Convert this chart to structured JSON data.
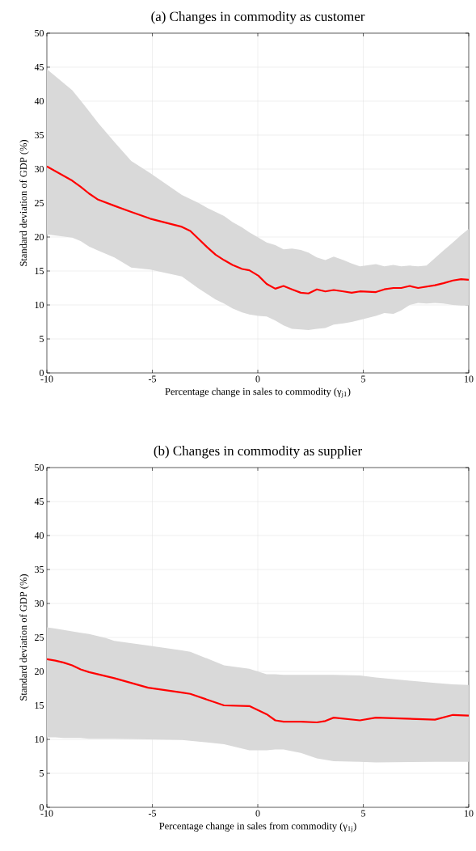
{
  "chart_data": [
    {
      "type": "line",
      "title": "(a) Changes in commodity as customer",
      "xlabel": "Percentage change in sales to commodity (γ$_{j1}$)",
      "ylabel": "Standard deviation of GDP (%)",
      "xlim": [
        -10,
        10
      ],
      "ylim": [
        0,
        50
      ],
      "xticks": [
        -10,
        -5,
        0,
        5,
        10
      ],
      "yticks": [
        0,
        5,
        10,
        15,
        20,
        25,
        30,
        35,
        40,
        45,
        50
      ],
      "grid": true,
      "series": [
        {
          "color": "#ff0000",
          "x": [
            -10,
            -8.8,
            -8.4,
            -8.0,
            -7.57,
            -6.8,
            -6.0,
            -5.1,
            -3.6,
            -3.2,
            -2.8,
            -2.4,
            -2.0,
            -1.6,
            -1.2,
            -0.74,
            -0.4,
            0.03,
            0.42,
            0.83,
            1.22,
            1.62,
            2.04,
            2.4,
            2.8,
            3.2,
            3.6,
            4.06,
            4.45,
            4.84,
            5.6,
            6.0,
            6.43,
            6.8,
            7.2,
            7.6,
            8.0,
            8.4,
            8.8,
            9.25,
            9.64,
            10
          ],
          "values": [
            30.4,
            28.3,
            27.4,
            26.4,
            25.5,
            24.6,
            23.7,
            22.7,
            21.5,
            20.9,
            19.7,
            18.5,
            17.4,
            16.6,
            15.9,
            15.3,
            15.1,
            14.3,
            13.1,
            12.4,
            12.8,
            12.3,
            11.8,
            11.7,
            12.3,
            12.0,
            12.2,
            12.0,
            11.8,
            12.0,
            11.9,
            12.3,
            12.5,
            12.5,
            12.8,
            12.5,
            12.7,
            12.9,
            13.2,
            13.6,
            13.8,
            13.7
          ],
          "upper": [
            44.7,
            41.6,
            40.1,
            38.5,
            36.8,
            34.0,
            31.2,
            29.4,
            26.2,
            25.6,
            25.0,
            24.3,
            23.7,
            23.1,
            22.2,
            21.4,
            20.7,
            19.9,
            19.2,
            18.8,
            18.2,
            18.3,
            18.1,
            17.7,
            17.0,
            16.6,
            17.1,
            16.6,
            16.1,
            15.7,
            16.0,
            15.7,
            15.9,
            15.7,
            15.8,
            15.7,
            15.8,
            16.9,
            18.0,
            19.2,
            20.3,
            21.2
          ],
          "lower": [
            20.4,
            19.9,
            19.4,
            18.6,
            18.0,
            17.0,
            15.5,
            15.2,
            14.2,
            13.3,
            12.4,
            11.6,
            10.8,
            10.2,
            9.5,
            8.9,
            8.6,
            8.4,
            8.3,
            7.7,
            7.0,
            6.5,
            6.4,
            6.3,
            6.5,
            6.6,
            7.1,
            7.3,
            7.5,
            7.8,
            8.4,
            8.8,
            8.7,
            9.2,
            10.0,
            10.3,
            10.2,
            10.3,
            10.2,
            10.0,
            9.9,
            9.9
          ]
        }
      ]
    },
    {
      "type": "line",
      "title": "(b) Changes in commodity as supplier",
      "xlabel": "Percentage change in sales from commodity (γ$_{1j}$)",
      "ylabel": "Standard deviation of GDP (%)",
      "xlim": [
        -10,
        10
      ],
      "ylim": [
        0,
        50
      ],
      "xticks": [
        -10,
        -5,
        0,
        5,
        10
      ],
      "yticks": [
        0,
        5,
        10,
        15,
        20,
        25,
        30,
        35,
        40,
        45,
        50
      ],
      "grid": true,
      "series": [
        {
          "color": "#ff0000",
          "x": [
            -10,
            -9.6,
            -9.2,
            -8.8,
            -8.4,
            -8.0,
            -7.2,
            -6.8,
            -5.2,
            -3.6,
            -3.2,
            -1.6,
            -0.4,
            0.42,
            0.83,
            1.22,
            2.04,
            2.8,
            3.2,
            3.6,
            4.84,
            5.6,
            8.4,
            9.25,
            10
          ],
          "values": [
            21.8,
            21.6,
            21.3,
            20.9,
            20.3,
            19.9,
            19.3,
            19.0,
            17.6,
            16.9,
            16.7,
            15.0,
            14.9,
            13.7,
            12.8,
            12.6,
            12.6,
            12.5,
            12.7,
            13.2,
            12.8,
            13.2,
            12.9,
            13.6,
            13.5
          ],
          "upper": [
            26.5,
            26.3,
            26.1,
            25.9,
            25.7,
            25.5,
            24.9,
            24.5,
            23.8,
            23.1,
            22.9,
            20.9,
            20.4,
            19.6,
            19.6,
            19.5,
            19.5,
            19.5,
            19.5,
            19.5,
            19.4,
            19.1,
            18.3,
            18.1,
            18.0
          ],
          "lower": [
            10.3,
            10.3,
            10.2,
            10.2,
            10.2,
            10.1,
            10.1,
            10.1,
            10.0,
            9.9,
            9.8,
            9.3,
            8.4,
            8.4,
            8.5,
            8.5,
            8.0,
            7.2,
            7.0,
            6.8,
            6.7,
            6.6,
            6.7,
            6.7,
            6.7
          ]
        }
      ]
    }
  ]
}
